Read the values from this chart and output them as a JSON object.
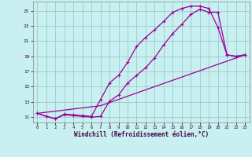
{
  "background_color": "#c8f0f0",
  "grid_color": "#a0c8c8",
  "line_color": "#990099",
  "xlim": [
    -0.5,
    23.5
  ],
  "ylim": [
    10.3,
    26.2
  ],
  "yticks": [
    11,
    13,
    15,
    17,
    19,
    21,
    23,
    25
  ],
  "xticks": [
    0,
    1,
    2,
    3,
    4,
    5,
    6,
    7,
    8,
    9,
    10,
    11,
    12,
    13,
    14,
    15,
    16,
    17,
    18,
    19,
    20,
    21,
    22,
    23
  ],
  "xlabel": "Windchill (Refroidissement éolien,°C)",
  "line1_x": [
    0,
    1,
    2,
    3,
    4,
    5,
    6,
    7,
    8,
    9,
    10,
    11,
    12,
    13,
    14,
    15,
    16,
    17,
    18,
    19,
    20,
    21,
    22,
    23
  ],
  "line1_y": [
    11.5,
    11.1,
    10.8,
    11.4,
    11.3,
    11.2,
    11.1,
    13.3,
    15.5,
    16.5,
    18.2,
    20.3,
    21.5,
    22.5,
    23.6,
    24.8,
    25.3,
    25.6,
    25.6,
    25.3,
    22.8,
    19.2,
    19.0,
    19.2
  ],
  "line2_x": [
    0,
    1,
    2,
    3,
    4,
    5,
    6,
    7,
    8,
    9,
    10,
    11,
    12,
    13,
    14,
    15,
    16,
    17,
    18,
    19,
    20,
    21,
    22,
    23
  ],
  "line2_y": [
    11.5,
    11.1,
    10.8,
    11.3,
    11.2,
    11.1,
    11.0,
    11.1,
    13.1,
    13.9,
    15.5,
    16.5,
    17.5,
    18.8,
    20.5,
    22.0,
    23.2,
    24.5,
    25.2,
    24.8,
    24.8,
    19.2,
    19.0,
    19.2
  ],
  "line3_x": [
    0,
    7,
    23
  ],
  "line3_y": [
    11.5,
    12.5,
    19.2
  ]
}
